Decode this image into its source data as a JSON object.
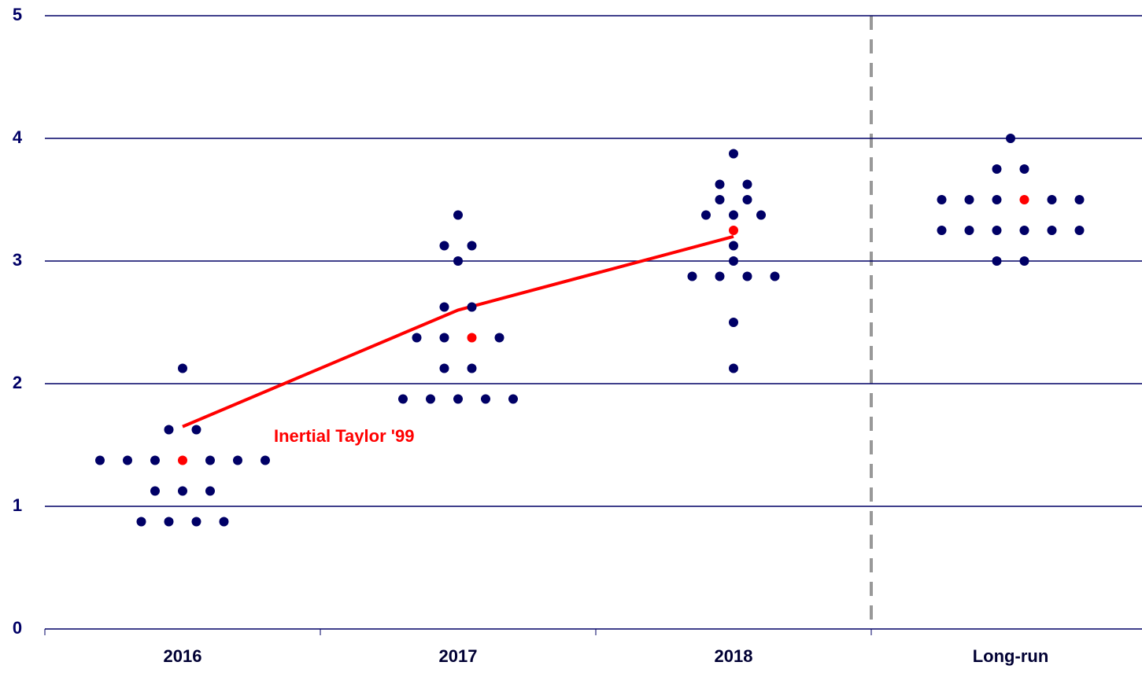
{
  "chart_data": {
    "type": "dot",
    "categories": [
      "2016",
      "2017",
      "2018",
      "Long-run"
    ],
    "ylim": [
      0,
      5
    ],
    "yticks": [
      0,
      1,
      2,
      3,
      4,
      5
    ],
    "grid": true,
    "series": [
      {
        "color": "#000066",
        "values": [
          [
            2.125,
            1.625,
            1.625,
            1.375,
            1.375,
            1.375,
            1.375,
            1.375,
            1.375,
            1.125,
            1.125,
            1.125,
            0.875,
            0.875,
            0.875,
            0.875
          ],
          [
            3.375,
            3.125,
            3.125,
            3.0,
            2.625,
            2.625,
            2.375,
            2.375,
            2.375,
            2.125,
            2.125,
            1.875,
            1.875,
            1.875,
            1.875,
            1.875
          ],
          [
            3.875,
            3.625,
            3.625,
            3.5,
            3.5,
            3.375,
            3.375,
            3.375,
            3.125,
            3.0,
            2.875,
            2.875,
            2.875,
            2.875,
            2.5,
            2.125
          ],
          [
            4.0,
            3.75,
            3.75,
            3.5,
            3.5,
            3.5,
            3.5,
            3.5,
            3.25,
            3.25,
            3.25,
            3.25,
            3.25,
            3.25,
            3.0,
            3.0
          ]
        ]
      },
      {
        "color": "#ff0000",
        "values": [
          1.375,
          2.375,
          3.25,
          3.5
        ]
      }
    ],
    "lines": [
      {
        "name": "Inertial Taylor '99",
        "color": "#ff0000",
        "values": [
          1.65,
          2.6,
          3.2,
          null
        ]
      }
    ]
  }
}
